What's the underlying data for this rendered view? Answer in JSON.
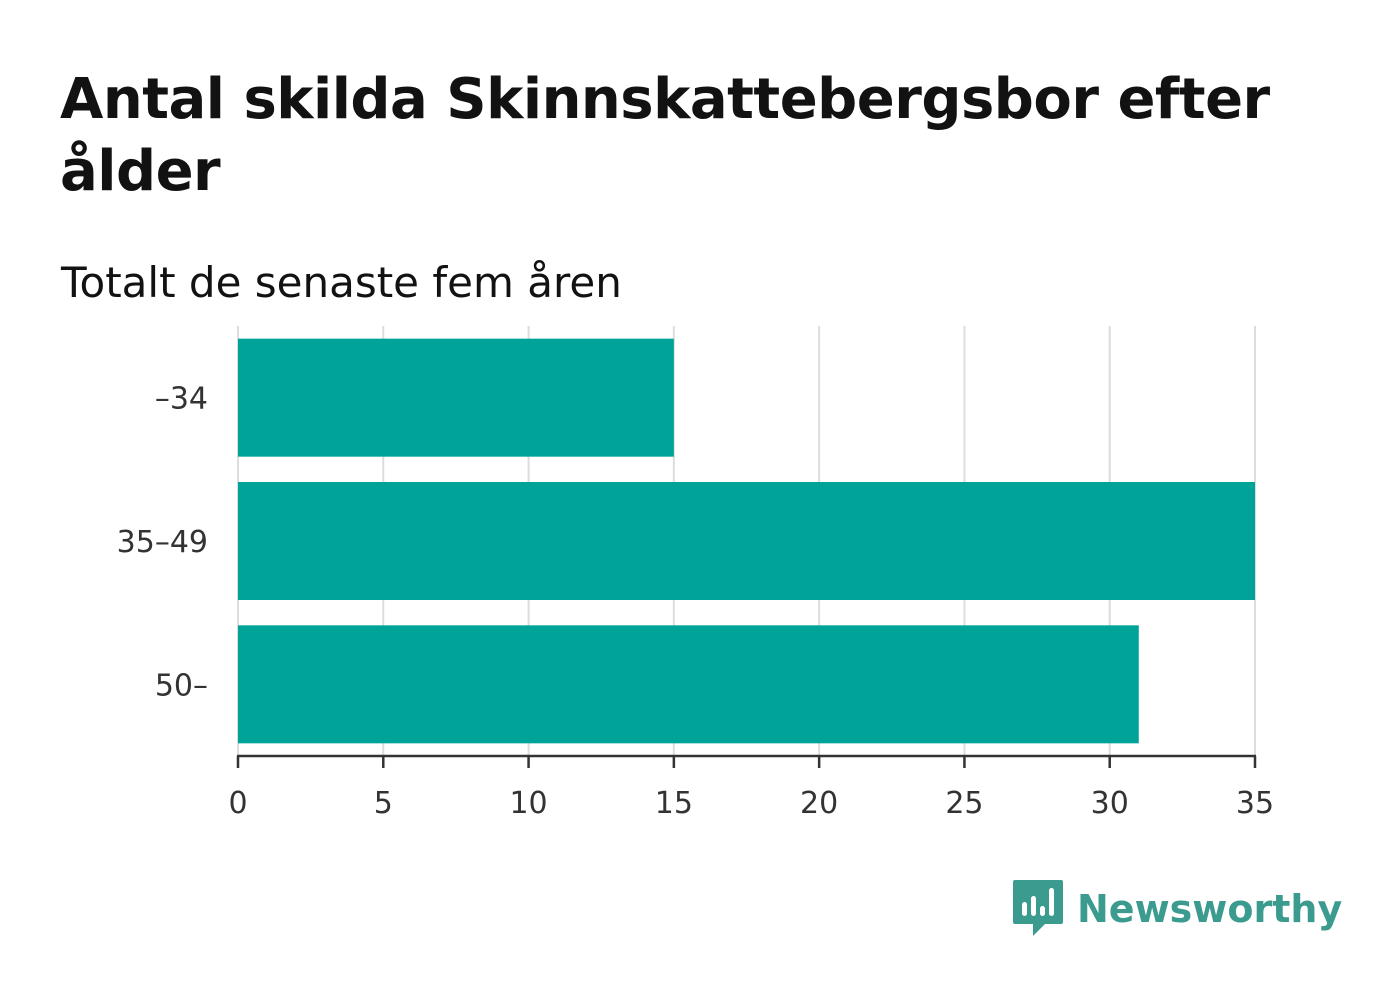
{
  "chart_data": {
    "type": "bar",
    "orientation": "horizontal",
    "title": "Antal skilda Skinnskattebergsbor efter ålder",
    "subtitle": "Totalt de senaste fem åren",
    "categories": [
      "–34",
      "35–49",
      "50–"
    ],
    "values": [
      15,
      35,
      31
    ],
    "xlim": [
      0,
      35
    ],
    "xticks": [
      0,
      5,
      10,
      15,
      20,
      25,
      30,
      35
    ],
    "grid": "vertical",
    "bar_color": "#00a398",
    "grid_color": "#dddddd",
    "axis_color": "#333333"
  },
  "brand": {
    "name": "Newsworthy",
    "icon": "bar-chart-speech-bubble-icon",
    "color": "#3b9b8f"
  }
}
